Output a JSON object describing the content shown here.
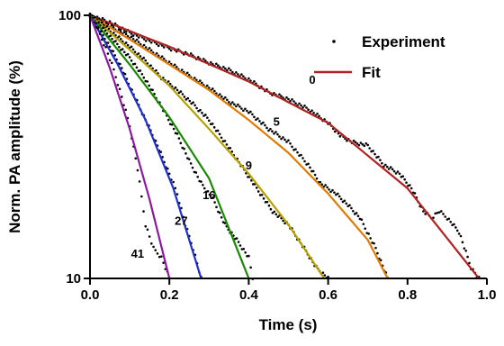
{
  "chart_data": {
    "type": "line",
    "title": "",
    "xlabel": "Time (s)",
    "ylabel": "Norm. PA amplitude (%)",
    "xlim": [
      0.0,
      1.0
    ],
    "ylim": [
      10,
      100
    ],
    "y_scale": "log",
    "grid": false,
    "x_ticks": [
      {
        "value": 0.0,
        "label": "0.0"
      },
      {
        "value": 0.2,
        "label": "0.2"
      },
      {
        "value": 0.4,
        "label": "0.4"
      },
      {
        "value": 0.6,
        "label": "0.6"
      },
      {
        "value": 0.8,
        "label": "0.8"
      },
      {
        "value": 1.0,
        "label": "1.0"
      }
    ],
    "y_ticks": [
      {
        "value": 10,
        "label": "10"
      },
      {
        "value": 100,
        "label": "100"
      }
    ],
    "legend": {
      "position": "top-right",
      "entries": [
        {
          "label": "Experiment",
          "marker": "dot",
          "color": "#000000"
        },
        {
          "label": "Fit",
          "marker": "line",
          "color": "#b22222"
        }
      ]
    },
    "series": [
      {
        "label": "0",
        "color": "#b22222",
        "label_position": [
          0.56,
          55
        ],
        "fit": [
          [
            0.0,
            100
          ],
          [
            0.2,
            76
          ],
          [
            0.4,
            56
          ],
          [
            0.6,
            39
          ],
          [
            0.8,
            22
          ],
          [
            0.98,
            10
          ]
        ],
        "experiment": [
          [
            0.0,
            100
          ],
          [
            0.05,
            94
          ],
          [
            0.1,
            86
          ],
          [
            0.15,
            80
          ],
          [
            0.2,
            75
          ],
          [
            0.25,
            71
          ],
          [
            0.3,
            66
          ],
          [
            0.35,
            62
          ],
          [
            0.4,
            57
          ],
          [
            0.45,
            51
          ],
          [
            0.5,
            48
          ],
          [
            0.55,
            44
          ],
          [
            0.6,
            39
          ],
          [
            0.63,
            35
          ],
          [
            0.66,
            33
          ],
          [
            0.7,
            32
          ],
          [
            0.74,
            27
          ],
          [
            0.78,
            25
          ],
          [
            0.81,
            22
          ],
          [
            0.84,
            18
          ],
          [
            0.86,
            17
          ],
          [
            0.88,
            18
          ],
          [
            0.9,
            17
          ],
          [
            0.93,
            15
          ],
          [
            0.96,
            11
          ],
          [
            0.98,
            10
          ]
        ]
      },
      {
        "label": "5",
        "color": "#e07b00",
        "label_position": [
          0.47,
          38
        ],
        "fit": [
          [
            0.0,
            100
          ],
          [
            0.1,
            81
          ],
          [
            0.2,
            65
          ],
          [
            0.3,
            52
          ],
          [
            0.4,
            40
          ],
          [
            0.5,
            30
          ],
          [
            0.6,
            21
          ],
          [
            0.7,
            14
          ],
          [
            0.75,
            10
          ]
        ],
        "experiment": [
          [
            0.0,
            100
          ],
          [
            0.05,
            91
          ],
          [
            0.1,
            83
          ],
          [
            0.15,
            74
          ],
          [
            0.2,
            66
          ],
          [
            0.25,
            59
          ],
          [
            0.3,
            53
          ],
          [
            0.35,
            47
          ],
          [
            0.4,
            43
          ],
          [
            0.45,
            37
          ],
          [
            0.5,
            33
          ],
          [
            0.55,
            27
          ],
          [
            0.58,
            23
          ],
          [
            0.62,
            21
          ],
          [
            0.65,
            19
          ],
          [
            0.68,
            17
          ],
          [
            0.72,
            13
          ],
          [
            0.75,
            10
          ]
        ]
      },
      {
        "label": "9",
        "color": "#b8a000",
        "label_position": [
          0.4,
          26
        ],
        "fit": [
          [
            0.0,
            100
          ],
          [
            0.1,
            74
          ],
          [
            0.2,
            54
          ],
          [
            0.3,
            37
          ],
          [
            0.4,
            25
          ],
          [
            0.5,
            16
          ],
          [
            0.59,
            10
          ]
        ],
        "experiment": [
          [
            0.0,
            100
          ],
          [
            0.03,
            93
          ],
          [
            0.06,
            85
          ],
          [
            0.1,
            76
          ],
          [
            0.14,
            67
          ],
          [
            0.18,
            58
          ],
          [
            0.22,
            52
          ],
          [
            0.26,
            46
          ],
          [
            0.3,
            40
          ],
          [
            0.34,
            33
          ],
          [
            0.38,
            27
          ],
          [
            0.42,
            22
          ],
          [
            0.46,
            18
          ],
          [
            0.5,
            16
          ],
          [
            0.54,
            13
          ],
          [
            0.57,
            11
          ],
          [
            0.6,
            10
          ]
        ]
      },
      {
        "label": "16",
        "color": "#1a8a00",
        "label_position": [
          0.3,
          20
        ],
        "fit": [
          [
            0.0,
            100
          ],
          [
            0.1,
            65
          ],
          [
            0.2,
            41
          ],
          [
            0.3,
            24
          ],
          [
            0.4,
            10
          ]
        ],
        "experiment": [
          [
            0.0,
            100
          ],
          [
            0.03,
            90
          ],
          [
            0.06,
            80
          ],
          [
            0.1,
            69
          ],
          [
            0.14,
            57
          ],
          [
            0.18,
            45
          ],
          [
            0.22,
            35
          ],
          [
            0.25,
            28
          ],
          [
            0.28,
            23
          ],
          [
            0.31,
            20
          ],
          [
            0.34,
            16
          ],
          [
            0.37,
            14
          ],
          [
            0.4,
            12
          ],
          [
            0.41,
            10
          ]
        ]
      },
      {
        "label": "27",
        "color": "#1f2fd0",
        "label_position": [
          0.23,
          16
        ],
        "fit": [
          [
            0.0,
            100
          ],
          [
            0.07,
            65
          ],
          [
            0.14,
            40
          ],
          [
            0.21,
            22
          ],
          [
            0.28,
            10
          ]
        ],
        "experiment": [
          [
            0.0,
            100
          ],
          [
            0.02,
            90
          ],
          [
            0.05,
            76
          ],
          [
            0.08,
            63
          ],
          [
            0.11,
            50
          ],
          [
            0.14,
            40
          ],
          [
            0.17,
            32
          ],
          [
            0.2,
            25
          ],
          [
            0.22,
            21
          ],
          [
            0.24,
            16
          ],
          [
            0.26,
            13
          ],
          [
            0.28,
            10
          ]
        ]
      },
      {
        "label": "41",
        "color": "#8b1aa0",
        "label_position": [
          0.12,
          12
        ],
        "fit": [
          [
            0.0,
            100
          ],
          [
            0.05,
            63
          ],
          [
            0.1,
            37
          ],
          [
            0.15,
            20
          ],
          [
            0.2,
            10
          ]
        ],
        "experiment": [
          [
            0.0,
            100
          ],
          [
            0.02,
            88
          ],
          [
            0.04,
            75
          ],
          [
            0.06,
            62
          ],
          [
            0.08,
            49
          ],
          [
            0.1,
            38
          ],
          [
            0.12,
            26
          ],
          [
            0.14,
            16
          ],
          [
            0.16,
            13
          ],
          [
            0.18,
            12
          ],
          [
            0.2,
            10
          ]
        ]
      }
    ]
  }
}
